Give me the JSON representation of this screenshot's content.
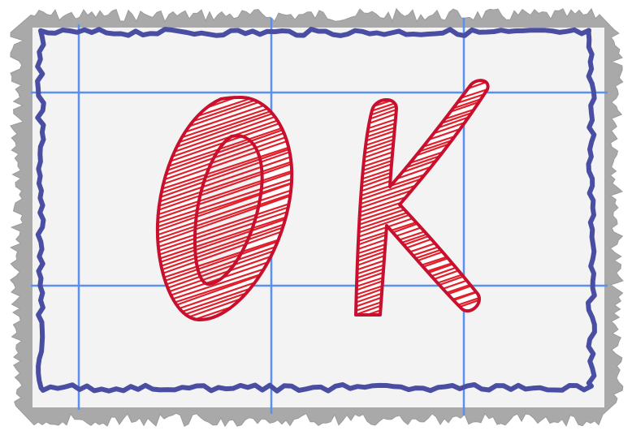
{
  "button": {
    "label": "OK"
  },
  "colors": {
    "background": "#ffffff",
    "paper": "#f3f3f4",
    "torn_edge": "#a9a9a9",
    "frame": "#4a4ea3",
    "grid": "#5b8ff0",
    "letter_fill": "#ffffff",
    "letter_hatch": "#e0202a",
    "letter_outline": "#c8102e"
  },
  "icons": {
    "frame": "scribble-frame-icon",
    "edge": "torn-paper-edge-icon"
  }
}
